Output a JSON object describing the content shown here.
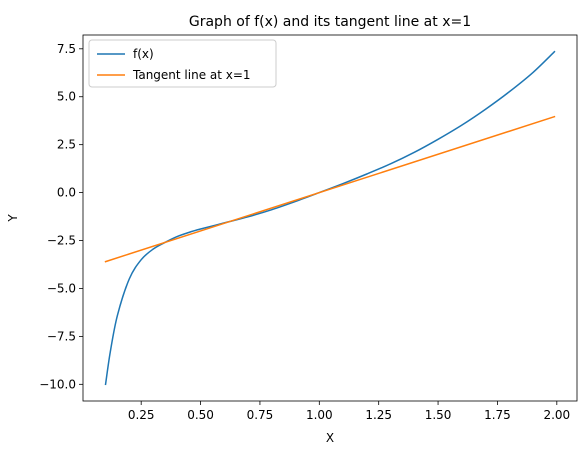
{
  "chart_data": {
    "type": "line",
    "title": "Graph of f(x) and its tangent line at x=1",
    "xlabel": "X",
    "ylabel": "Y",
    "xlim": [
      0.005,
      2.085
    ],
    "ylim": [
      -10.87,
      8.22
    ],
    "xticks": [
      0.25,
      0.5,
      0.75,
      1.0,
      1.25,
      1.5,
      1.75,
      2.0
    ],
    "xtick_labels": [
      "0.25",
      "0.50",
      "0.75",
      "1.00",
      "1.25",
      "1.50",
      "1.75",
      "2.00"
    ],
    "yticks": [
      -10.0,
      -7.5,
      -5.0,
      -2.5,
      0.0,
      2.5,
      5.0,
      7.5
    ],
    "ytick_labels": [
      "−10.0",
      "−7.5",
      "−5.0",
      "−2.5",
      "0.0",
      "2.5",
      "5.0",
      "7.5"
    ],
    "grid": false,
    "legend_position": "top-left",
    "series": [
      {
        "name": "f(x)",
        "color": "#1f77b4",
        "x": [
          0.1,
          0.12,
          0.15,
          0.2,
          0.25,
          0.3,
          0.35,
          0.4,
          0.45,
          0.5,
          0.6,
          0.7,
          0.8,
          0.9,
          1.0,
          1.1,
          1.2,
          1.3,
          1.4,
          1.5,
          1.6,
          1.7,
          1.8,
          1.9,
          1.99
        ],
        "y": [
          -10.0,
          -8.3,
          -6.4,
          -4.5,
          -3.5,
          -2.95,
          -2.6,
          -2.3,
          -2.08,
          -1.9,
          -1.58,
          -1.26,
          -0.89,
          -0.46,
          0.0,
          0.47,
          0.97,
          1.5,
          2.1,
          2.78,
          3.52,
          4.35,
          5.26,
          6.27,
          7.35
        ]
      },
      {
        "name": "Tangent line at x=1",
        "color": "#ff7f0e",
        "x": [
          0.1,
          1.99
        ],
        "y": [
          -3.6,
          3.96
        ]
      }
    ]
  }
}
